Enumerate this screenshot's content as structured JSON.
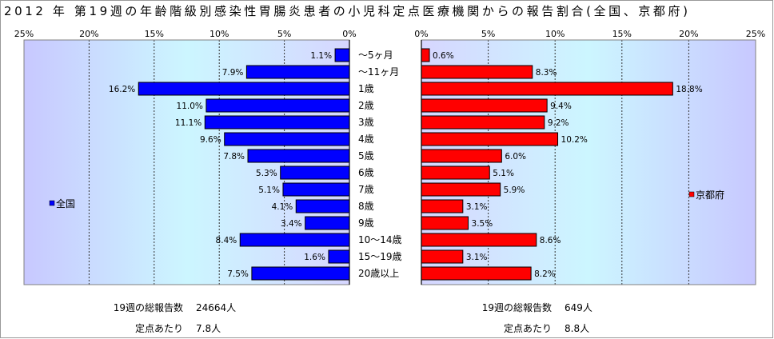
{
  "chart_data": {
    "type": "bar",
    "title": "2012 年 第19週の年齢階級別感染性胃腸炎患者の小児科定点医療機関からの報告割合(全国、京都府)",
    "categories": [
      "～5ヶ月",
      "～11ヶ月",
      "1歳",
      "2歳",
      "3歳",
      "4歳",
      "5歳",
      "6歳",
      "7歳",
      "8歳",
      "9歳",
      "10～14歳",
      "15～19歳",
      "20歳以上"
    ],
    "xlim": [
      0,
      25
    ],
    "xticks": [
      0,
      5,
      10,
      15,
      20,
      25
    ],
    "xtick_labels": [
      "0%",
      "5%",
      "10%",
      "15%",
      "20%",
      "25%"
    ],
    "grid": true,
    "series": [
      {
        "name": "全国",
        "color": "#0000ff",
        "legend_position": "left",
        "values": [
          1.1,
          7.9,
          16.2,
          11.0,
          11.1,
          9.6,
          7.8,
          5.3,
          5.1,
          4.1,
          3.4,
          8.4,
          1.6,
          7.5
        ],
        "labels": [
          "1.1%",
          "7.9%",
          "16.2%",
          "11.0%",
          "11.1%",
          "9.6%",
          "7.8%",
          "5.3%",
          "5.1%",
          "4.1%",
          "3.4%",
          "8.4%",
          "1.6%",
          "7.5%"
        ]
      },
      {
        "name": "京都府",
        "color": "#ff0000",
        "legend_position": "right",
        "values": [
          0.6,
          8.3,
          18.8,
          9.4,
          9.2,
          10.2,
          6.0,
          5.1,
          5.9,
          3.1,
          3.5,
          8.6,
          3.1,
          8.2
        ],
        "labels": [
          "0.6%",
          "8.3%",
          "18.8%",
          "9.4%",
          "9.2%",
          "10.2%",
          "6.0%",
          "5.1%",
          "5.9%",
          "3.1%",
          "3.5%",
          "8.6%",
          "3.1%",
          "8.2%"
        ]
      }
    ]
  },
  "summary": {
    "national": [
      {
        "label": "19週の総報告数",
        "value": "24664人"
      },
      {
        "label": "定点あたり",
        "value": "7.8人"
      }
    ],
    "kyoto": [
      {
        "label": "19週の総報告数",
        "value": "649人"
      },
      {
        "label": "定点あたり",
        "value": "8.8人"
      }
    ]
  }
}
